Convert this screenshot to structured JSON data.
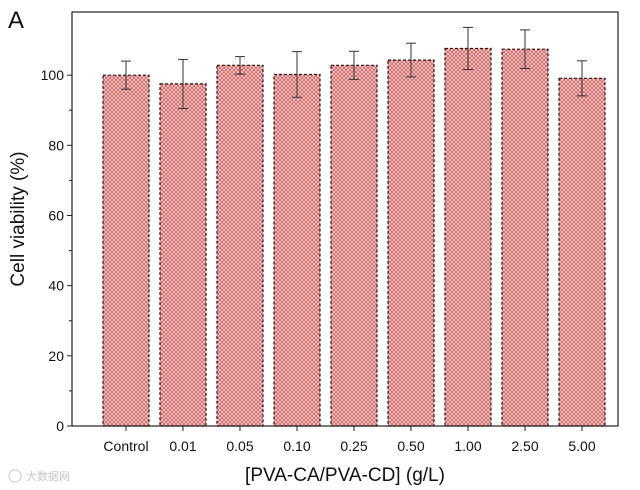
{
  "panel_label": "A",
  "watermark": "大数据网",
  "colors": {
    "bar_fill": "#f6d3d3",
    "hatch": "#d06262",
    "bar_border": "#2a1010",
    "axis": "#222222",
    "error": "#333333"
  },
  "chart_data": {
    "type": "bar",
    "title": "",
    "xlabel": "[PVA-CA/PVA-CD] (g/L)",
    "ylabel": "Cell viability (%)",
    "ylim": [
      0,
      118
    ],
    "yticks": [
      0,
      20,
      40,
      60,
      80,
      100
    ],
    "categories": [
      "Control",
      "0.01",
      "0.05",
      "0.10",
      "0.25",
      "0.50",
      "1.00",
      "2.50",
      "5.00"
    ],
    "values": [
      100,
      97.5,
      102.8,
      100.2,
      102.8,
      104.3,
      107.6,
      107.4,
      99.1
    ],
    "errors": [
      4,
      7,
      2.5,
      6.5,
      4,
      4.8,
      6,
      5.5,
      5
    ],
    "legend": "none",
    "grid": false
  }
}
